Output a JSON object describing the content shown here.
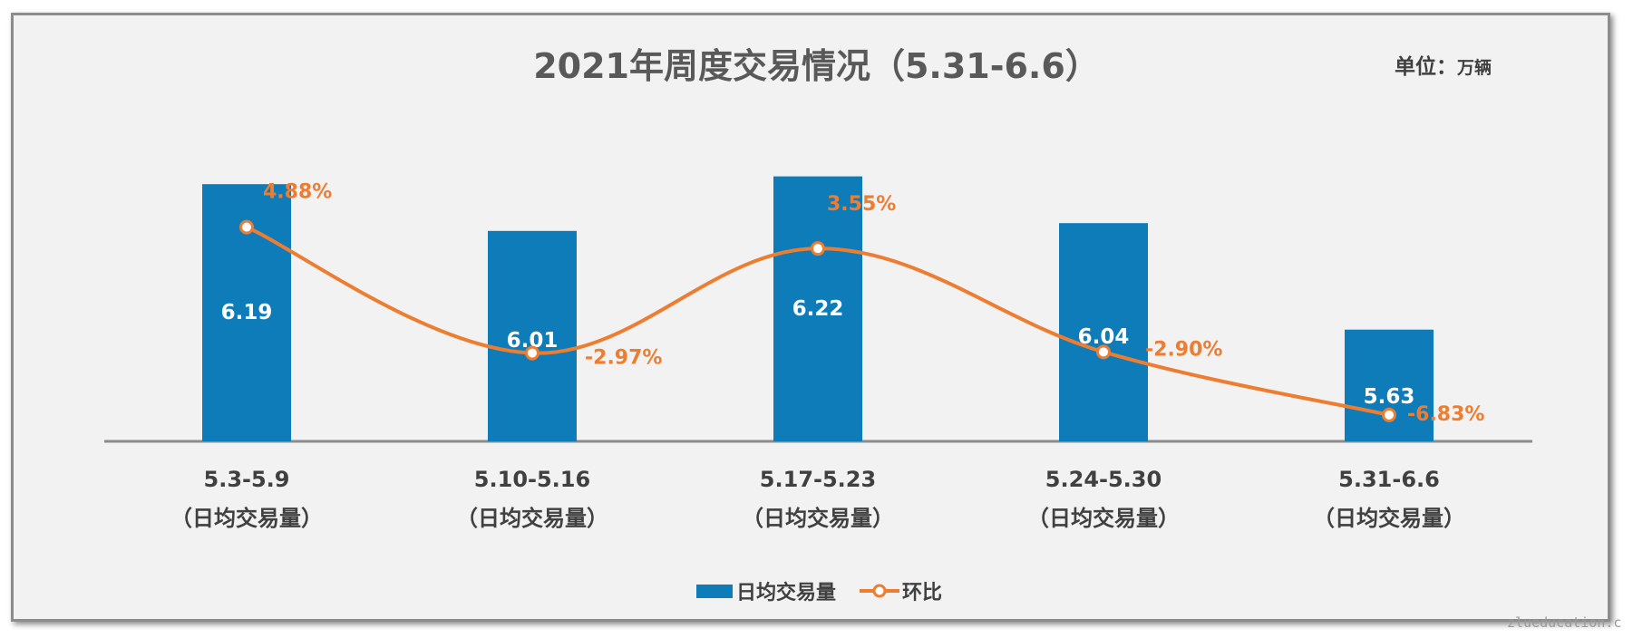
{
  "chart_data": {
    "type": "bar",
    "title": "2021年周度交易情况（5.31-6.6）",
    "unit_label": "单位",
    "unit_value": "万辆",
    "categories": [
      {
        "week": "5.3-5.9",
        "note": "（日均交易量）"
      },
      {
        "week": "5.10-5.16",
        "note": "（日均交易量）"
      },
      {
        "week": "5.17-5.23",
        "note": "（日均交易量）"
      },
      {
        "week": "5.24-5.30",
        "note": "（日均交易量）"
      },
      {
        "week": "5.31-6.6",
        "note": "（日均交易量）"
      }
    ],
    "series": [
      {
        "name": "日均交易量",
        "type": "bar",
        "color": "#0f7cba",
        "values": [
          6.19,
          6.01,
          6.22,
          6.04,
          5.63
        ],
        "labels": [
          "6.19",
          "6.01",
          "6.22",
          "6.04",
          "5.63"
        ]
      },
      {
        "name": "环比",
        "type": "line",
        "color": "#ed7d31",
        "values": [
          4.88,
          -2.97,
          3.55,
          -2.9,
          -6.83
        ],
        "labels": [
          "4.88%",
          "-2.97%",
          "3.55%",
          "-2.90%",
          "-6.83%"
        ]
      }
    ],
    "legend": "bottom-center",
    "grid": false
  },
  "watermark": "zlueducation.c"
}
